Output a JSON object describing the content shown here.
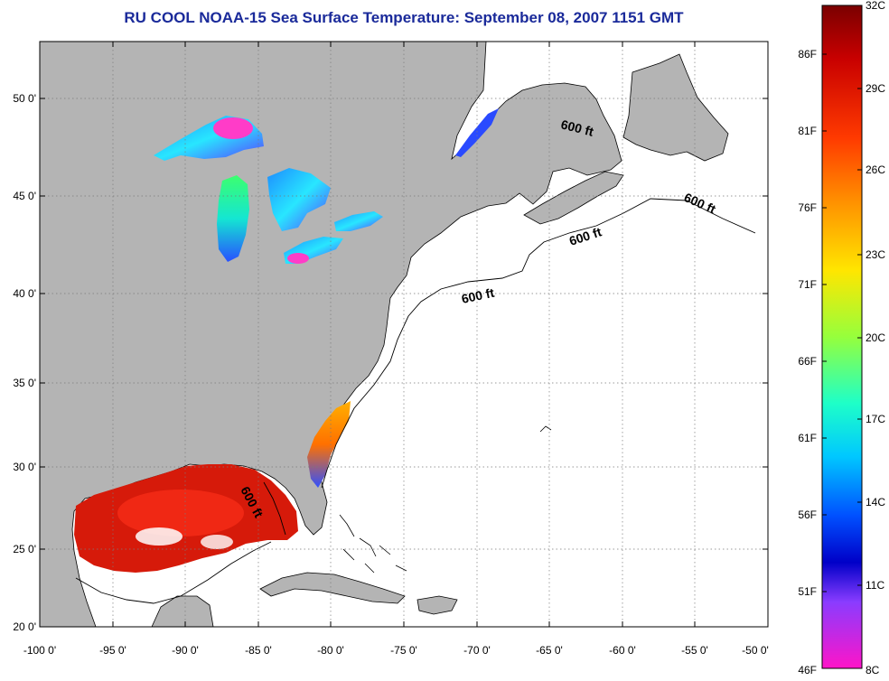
{
  "title": "RU COOL  NOAA-15  Sea Surface Temperature:  September 08, 2007 1151 GMT",
  "map": {
    "lat_ticks": [
      "50 0'",
      "45 0'",
      "40 0'",
      "35 0'",
      "30 0'",
      "25 0'",
      "20 0'"
    ],
    "lon_ticks": [
      "-100 0'",
      "-95 0'",
      "-90 0'",
      "-85 0'",
      "-80 0'",
      "-75 0'",
      "-70 0'",
      "-65 0'",
      "-60 0'",
      "-55 0'",
      "-50 0'"
    ],
    "contour_labels": [
      "600 ft",
      "600 ft",
      "600 ft",
      "600 ft",
      "600 ft"
    ],
    "colors": {
      "land": "#b4b4b4",
      "ocean": "#ffffff",
      "grid": "#7a7a7a"
    }
  },
  "colorbar": {
    "fahrenheit": [
      "86F",
      "81F",
      "76F",
      "71F",
      "66F",
      "61F",
      "56F",
      "51F",
      "46F"
    ],
    "celsius": [
      "32C",
      "29C",
      "26C",
      "23C",
      "20C",
      "17C",
      "14C",
      "11C",
      "8C"
    ]
  }
}
